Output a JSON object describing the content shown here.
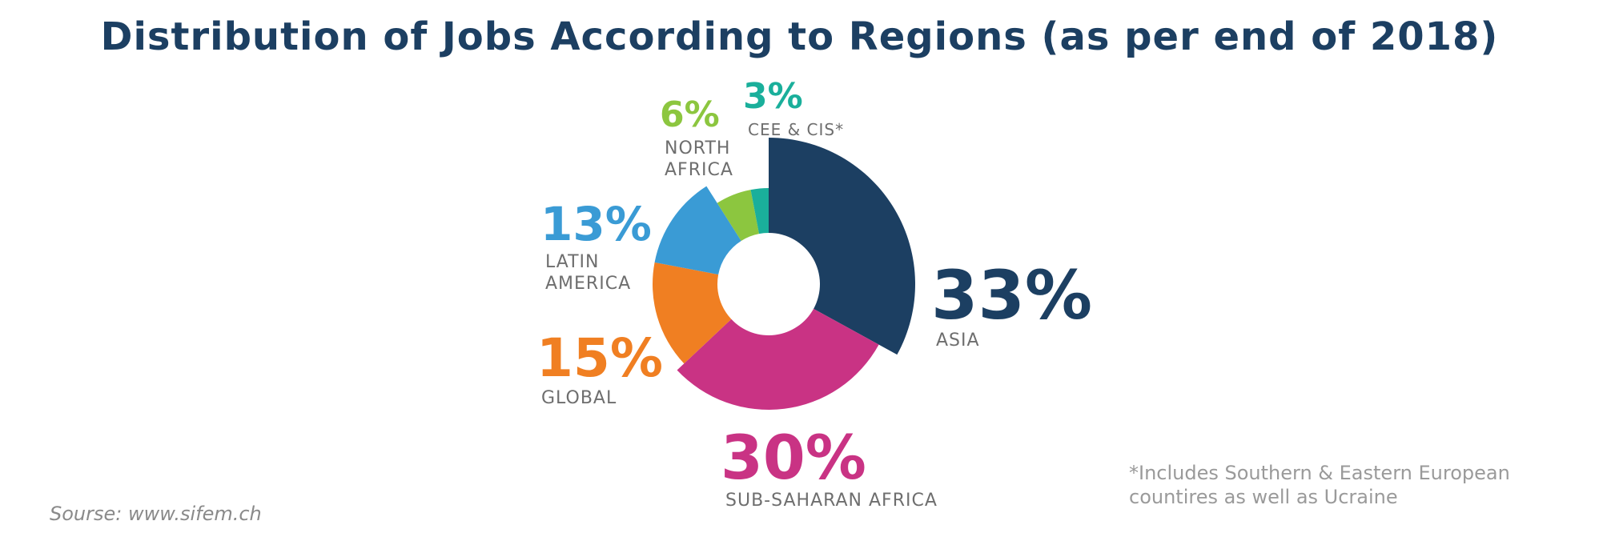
{
  "title": "Distribution of Jobs According to Regions (as per end of 2018)",
  "chart_data": {
    "type": "pie",
    "categories": [
      "ASIA",
      "SUB-SAHARAN AFRICA",
      "GLOBAL",
      "LATIN AMERICA",
      "NORTH AFRICA",
      "CEE & CIS*"
    ],
    "values": [
      33,
      30,
      15,
      13,
      6,
      3
    ],
    "value_labels": [
      "33%",
      "30%",
      "15%",
      "13%",
      "6%",
      "3%"
    ],
    "label_lines": [
      [
        "ASIA"
      ],
      [
        "SUB-SAHARAN AFRICA"
      ],
      [
        "GLOBAL"
      ],
      [
        "LATIN",
        "AMERICA"
      ],
      [
        "NORTH",
        "AFRICA"
      ],
      [
        "CEE & CIS*"
      ]
    ],
    "colors": [
      "#1c3f62",
      "#c93384",
      "#f07f22",
      "#3a9bd5",
      "#8cc63f",
      "#1aaf9b"
    ]
  },
  "footnote": {
    "line1": "*Includes  Southern & Eastern European",
    "line2": "countires as well as Ucraine"
  },
  "source": "Sourse: www.sifem.ch"
}
